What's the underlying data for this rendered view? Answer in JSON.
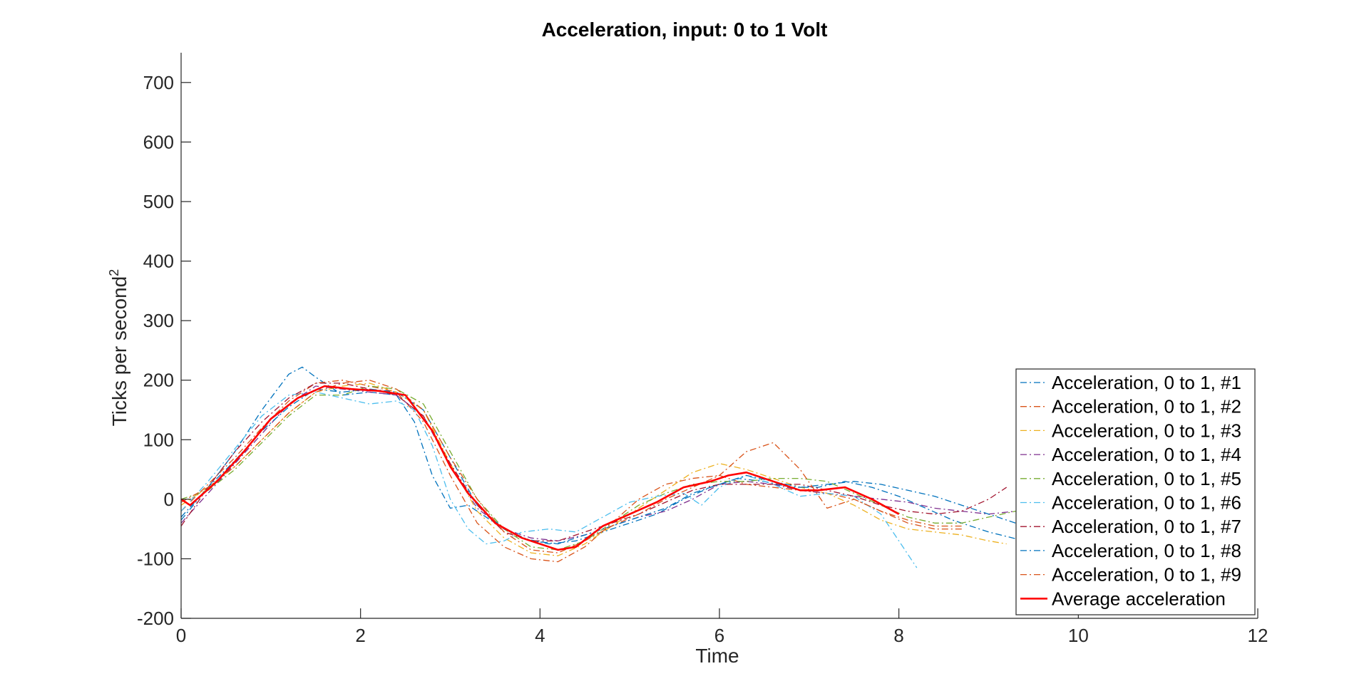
{
  "chart_data": {
    "type": "line",
    "title": "Acceleration, input: 0 to 1 Volt",
    "xlabel": "Time",
    "ylabel": "Ticks per second",
    "ylabel_superscript": "2",
    "xlim": [
      0,
      12
    ],
    "ylim": [
      -200,
      750
    ],
    "xticks": [
      0,
      2,
      4,
      6,
      8,
      10,
      12
    ],
    "yticks": [
      -200,
      -100,
      0,
      100,
      200,
      300,
      400,
      500,
      600,
      700
    ],
    "grid": false,
    "legend_position": "bottom-right",
    "series": [
      {
        "name": "Acceleration, 0 to 1, #1",
        "color": "#0072BD",
        "style": "dashdot",
        "x": [
          0,
          0.3,
          0.6,
          0.9,
          1.2,
          1.35,
          1.5,
          1.8,
          2.1,
          2.4,
          2.6,
          2.8,
          3.0,
          3.2,
          3.5,
          3.8,
          4.1,
          4.4,
          4.7,
          5.0,
          5.3,
          5.6,
          5.9,
          6.2,
          6.5,
          6.8,
          7.1,
          7.4,
          7.7,
          8.0,
          8.3,
          8.6,
          9.0,
          9.4,
          9.8,
          10.2
        ],
        "y": [
          -30,
          20,
          80,
          150,
          210,
          222,
          205,
          175,
          180,
          175,
          130,
          40,
          -15,
          -10,
          -40,
          -65,
          -75,
          -70,
          -55,
          -40,
          -25,
          0,
          20,
          35,
          30,
          20,
          20,
          30,
          20,
          5,
          -15,
          -35,
          -55,
          -70,
          -85,
          -95
        ]
      },
      {
        "name": "Acceleration, 0 to 1, #2",
        "color": "#D95319",
        "style": "dashdot",
        "x": [
          0,
          0.3,
          0.6,
          0.9,
          1.2,
          1.5,
          1.8,
          2.1,
          2.4,
          2.7,
          3.0,
          3.3,
          3.6,
          3.9,
          4.2,
          4.5,
          4.8,
          5.1,
          5.4,
          5.7,
          6.0,
          6.3,
          6.6,
          6.9,
          7.2,
          7.5,
          7.8,
          8.1,
          8.4,
          8.7
        ],
        "y": [
          -20,
          25,
          70,
          120,
          165,
          195,
          200,
          190,
          180,
          130,
          40,
          -40,
          -80,
          -100,
          -105,
          -80,
          -40,
          0,
          25,
          35,
          40,
          25,
          20,
          15,
          10,
          0,
          -20,
          -40,
          -50,
          -50
        ]
      },
      {
        "name": "Acceleration, 0 to 1, #3",
        "color": "#EDB120",
        "style": "dashdot",
        "x": [
          0,
          0.3,
          0.6,
          0.9,
          1.2,
          1.5,
          1.8,
          2.1,
          2.4,
          2.7,
          3.0,
          3.3,
          3.6,
          3.9,
          4.2,
          4.5,
          4.8,
          5.1,
          5.4,
          5.7,
          6.0,
          6.3,
          6.6,
          6.9,
          7.2,
          7.5,
          7.8,
          8.1,
          8.4,
          8.7,
          9.0,
          9.2
        ],
        "y": [
          -10,
          20,
          55,
          100,
          145,
          180,
          190,
          195,
          180,
          150,
          60,
          -20,
          -65,
          -90,
          -95,
          -75,
          -45,
          -15,
          15,
          45,
          60,
          50,
          35,
          20,
          10,
          -10,
          -35,
          -50,
          -55,
          -60,
          -70,
          -75
        ]
      },
      {
        "name": "Acceleration, 0 to 1, #4",
        "color": "#7E2F8E",
        "style": "dashdot",
        "x": [
          0,
          0.3,
          0.6,
          0.9,
          1.2,
          1.5,
          1.8,
          2.1,
          2.4,
          2.7,
          3.0,
          3.3,
          3.6,
          3.9,
          4.2,
          4.5,
          4.8,
          5.1,
          5.4,
          5.7,
          6.0,
          6.3,
          6.6,
          6.9,
          7.2,
          7.5,
          7.8,
          8.1,
          8.4,
          8.7,
          9.0,
          9.3,
          9.6,
          9.9
        ],
        "y": [
          -40,
          10,
          60,
          110,
          160,
          190,
          185,
          180,
          175,
          140,
          55,
          -15,
          -50,
          -65,
          -70,
          -60,
          -45,
          -30,
          -20,
          0,
          25,
          30,
          25,
          15,
          10,
          5,
          0,
          -5,
          -15,
          -20,
          -25,
          -20,
          -10,
          -5
        ]
      },
      {
        "name": "Acceleration, 0 to 1, #5",
        "color": "#77AC30",
        "style": "dashdot",
        "x": [
          0,
          0.3,
          0.6,
          0.9,
          1.2,
          1.5,
          1.8,
          2.1,
          2.4,
          2.7,
          3.0,
          3.3,
          3.6,
          3.9,
          4.2,
          4.5,
          4.8,
          5.1,
          5.4,
          5.7,
          6.0,
          6.3,
          6.6,
          6.9,
          7.2,
          7.5,
          7.8,
          8.1,
          8.4,
          8.7,
          9.0,
          9.3,
          9.6
        ],
        "y": [
          0,
          15,
          50,
          95,
          140,
          175,
          175,
          190,
          185,
          160,
          80,
          0,
          -50,
          -80,
          -85,
          -70,
          -40,
          -10,
          10,
          25,
          30,
          30,
          35,
          35,
          30,
          10,
          -10,
          -30,
          -40,
          -40,
          -30,
          -20,
          -15
        ]
      },
      {
        "name": "Acceleration, 0 to 1, #6",
        "color": "#4DBEEE",
        "style": "dashdot",
        "x": [
          0,
          0.3,
          0.6,
          0.9,
          1.2,
          1.5,
          1.8,
          2.1,
          2.4,
          2.6,
          2.8,
          3.0,
          3.2,
          3.4,
          3.6,
          3.8,
          4.1,
          4.4,
          4.7,
          5.0,
          5.3,
          5.6,
          5.8,
          6.0,
          6.3,
          6.6,
          6.9,
          7.2,
          7.5,
          7.8,
          8.0,
          8.2
        ],
        "y": [
          -20,
          30,
          85,
          140,
          175,
          180,
          170,
          160,
          165,
          150,
          90,
          0,
          -50,
          -75,
          -70,
          -55,
          -50,
          -55,
          -30,
          -5,
          5,
          10,
          -10,
          20,
          40,
          25,
          5,
          10,
          5,
          -25,
          -70,
          -115
        ]
      },
      {
        "name": "Acceleration, 0 to 1, #7",
        "color": "#A2142F",
        "style": "dashdot",
        "x": [
          0,
          0.3,
          0.6,
          0.9,
          1.2,
          1.5,
          1.8,
          2.1,
          2.4,
          2.7,
          3.0,
          3.3,
          3.6,
          3.9,
          4.2,
          4.5,
          4.8,
          5.1,
          5.4,
          5.7,
          6.0,
          6.3,
          6.6,
          6.9,
          7.2,
          7.5,
          7.8,
          8.1,
          8.4,
          8.7,
          9.0,
          9.2
        ],
        "y": [
          -45,
          20,
          80,
          130,
          170,
          195,
          195,
          185,
          175,
          140,
          60,
          -10,
          -55,
          -70,
          -70,
          -55,
          -40,
          -25,
          -5,
          15,
          25,
          25,
          25,
          25,
          15,
          5,
          -10,
          -20,
          -25,
          -20,
          0,
          20
        ]
      },
      {
        "name": "Acceleration, 0 to 1, #8",
        "color": "#0072BD",
        "style": "dashdot",
        "x": [
          0,
          0.3,
          0.6,
          0.9,
          1.2,
          1.5,
          1.8,
          2.1,
          2.4,
          2.7,
          3.0,
          3.3,
          3.6,
          3.9,
          4.2,
          4.5,
          4.8,
          5.1,
          5.4,
          5.7,
          6.0,
          6.3,
          6.6,
          6.9,
          7.2,
          7.5,
          7.8,
          8.1,
          8.4,
          8.7,
          9.0,
          9.3
        ],
        "y": [
          -35,
          20,
          65,
          115,
          155,
          185,
          180,
          185,
          180,
          150,
          70,
          -10,
          -50,
          -70,
          -75,
          -60,
          -45,
          -30,
          -15,
          10,
          25,
          40,
          30,
          20,
          25,
          30,
          25,
          15,
          5,
          -10,
          -25,
          -40
        ]
      },
      {
        "name": "Acceleration, 0 to 1, #9",
        "color": "#D95319",
        "style": "dashdot",
        "x": [
          0,
          0.3,
          0.6,
          0.9,
          1.2,
          1.5,
          1.8,
          2.1,
          2.4,
          2.7,
          3.0,
          3.3,
          3.6,
          3.9,
          4.2,
          4.5,
          4.8,
          5.1,
          5.4,
          5.7,
          6.0,
          6.3,
          6.6,
          6.9,
          7.2,
          7.5,
          7.8,
          8.1,
          8.4,
          8.7
        ],
        "y": [
          -5,
          20,
          55,
          100,
          145,
          180,
          195,
          200,
          185,
          150,
          70,
          0,
          -55,
          -85,
          -90,
          -70,
          -45,
          -25,
          0,
          20,
          40,
          80,
          95,
          50,
          -15,
          0,
          -20,
          -35,
          -45,
          -45
        ]
      },
      {
        "name": "Average acceleration",
        "color": "#FF0000",
        "style": "solid",
        "x": [
          0,
          0.1,
          0.4,
          0.7,
          1.0,
          1.3,
          1.6,
          1.9,
          2.2,
          2.5,
          2.8,
          3.0,
          3.2,
          3.5,
          3.8,
          4.0,
          4.2,
          4.4,
          4.7,
          5.0,
          5.3,
          5.6,
          5.9,
          6.1,
          6.3,
          6.6,
          6.9,
          7.1,
          7.4,
          7.7,
          8.0
        ],
        "y": [
          0,
          -10,
          30,
          80,
          135,
          170,
          190,
          185,
          182,
          175,
          115,
          55,
          10,
          -40,
          -65,
          -75,
          -85,
          -80,
          -45,
          -25,
          -5,
          20,
          30,
          40,
          45,
          30,
          15,
          15,
          20,
          0,
          -25
        ]
      }
    ]
  }
}
